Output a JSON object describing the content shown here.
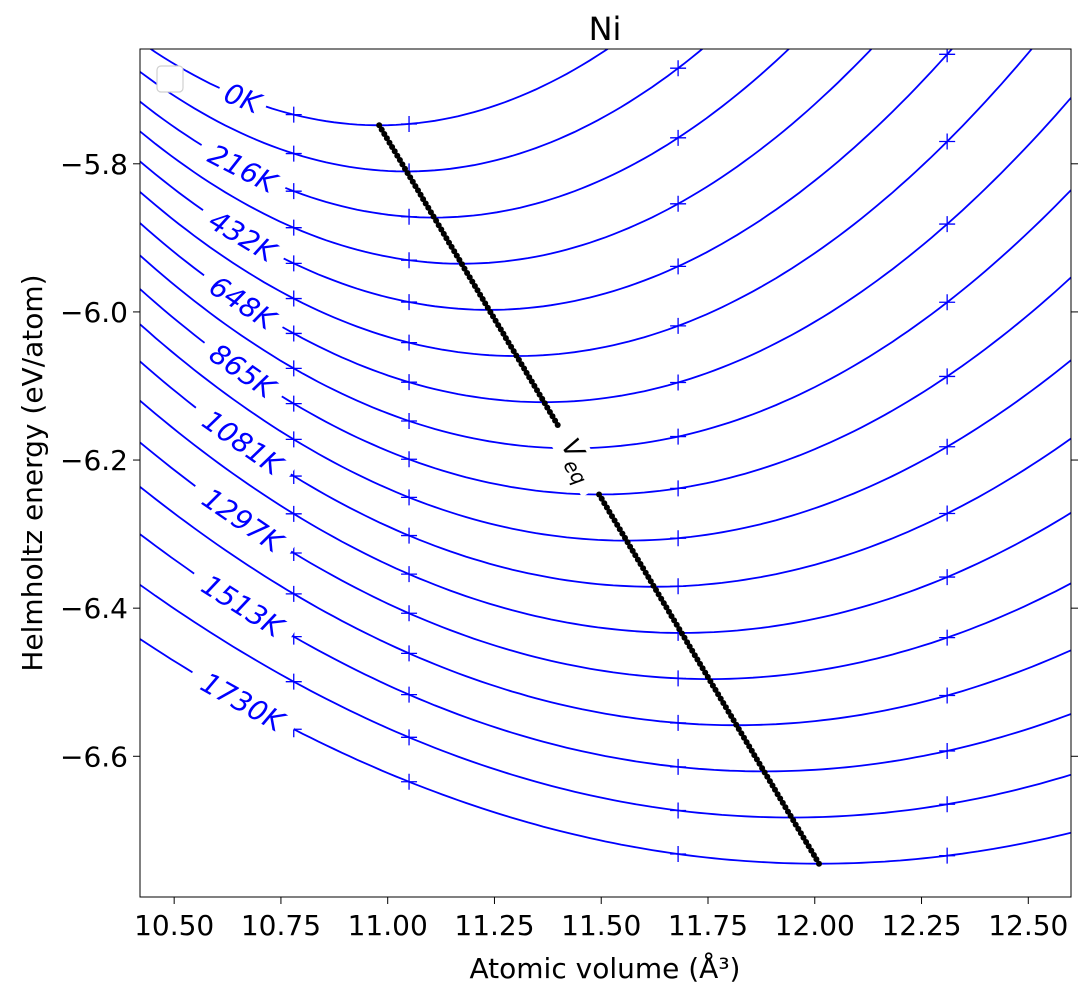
{
  "chart_data": {
    "type": "line",
    "title": "Ni",
    "xlabel": "Atomic volume (Å³)",
    "ylabel": "Helmholtz energy (eV/atom)",
    "xlim": [
      10.42,
      12.6
    ],
    "ylim": [
      -6.79,
      -5.645
    ],
    "xticks": [
      10.5,
      10.75,
      11.0,
      11.25,
      11.5,
      11.75,
      12.0,
      12.25,
      12.5
    ],
    "xtick_labels": [
      "10.50",
      "10.75",
      "11.00",
      "11.25",
      "11.50",
      "11.75",
      "12.00",
      "12.25",
      "12.50"
    ],
    "yticks": [
      -5.8,
      -6.0,
      -6.2,
      -6.4,
      -6.6
    ],
    "ytick_labels": [
      "−5.8",
      "−6.0",
      "−6.2",
      "−6.4",
      "−6.6"
    ],
    "grid": false,
    "legend": "top-left (empty)",
    "curve_color": "#0000ff",
    "veq_color": "#000000",
    "curve_params": {
      "F0_at_0K": -5.748,
      "F0_at_1730K": -6.745,
      "V0_at_0K": 10.98,
      "V0_at_1730K": 12.01,
      "a_at_0K": 0.36,
      "a_at_1730K": 0.12,
      "temperature_max": 1730,
      "count": 17
    },
    "data_point_volumes": [
      10.78,
      11.05,
      11.68,
      12.31
    ],
    "contour_labels": [
      {
        "text": "0K",
        "curve_index": 0
      },
      {
        "text": "216K",
        "curve_index": 2
      },
      {
        "text": "432K",
        "curve_index": 4
      },
      {
        "text": "648K",
        "curve_index": 6
      },
      {
        "text": "865K",
        "curve_index": 8
      },
      {
        "text": "1081K",
        "curve_index": 10
      },
      {
        "text": "1297K",
        "curve_index": 12
      },
      {
        "text": "1513K",
        "curve_index": 14
      },
      {
        "text": "1730K",
        "curve_index": 16
      }
    ],
    "veq_label": "V_eq"
  }
}
